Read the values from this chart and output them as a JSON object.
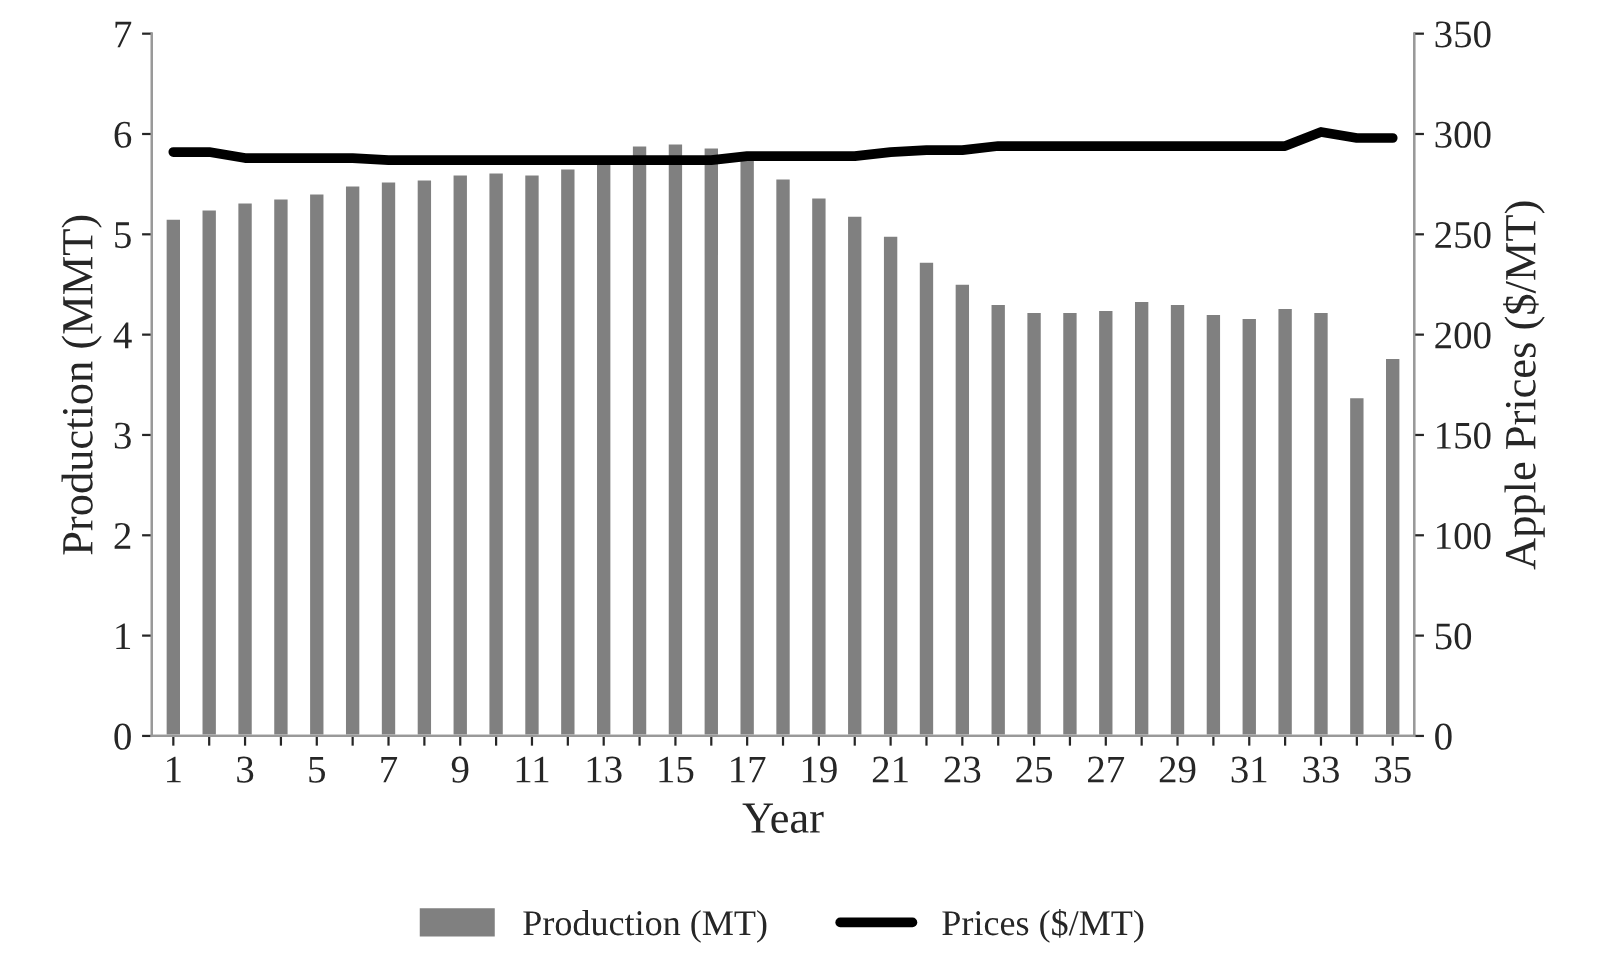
{
  "chart_data": {
    "type": "bar",
    "xlabel": "Year",
    "ylabel": "Production (MMT)",
    "y2label": "Apple Prices ($/MT)",
    "categories": [
      "1",
      null,
      "3",
      null,
      "5",
      null,
      "7",
      null,
      "9",
      null,
      "11",
      null,
      "13",
      null,
      "15",
      null,
      "17",
      null,
      "19",
      null,
      "21",
      null,
      "23",
      null,
      "25",
      null,
      "27",
      null,
      "29",
      null,
      "31",
      null,
      "33",
      null,
      "35"
    ],
    "series": [
      {
        "name": "Production (MT)",
        "color": "#808080",
        "values": [
          5.16,
          5.25,
          5.32,
          5.36,
          5.41,
          5.49,
          5.53,
          5.55,
          5.6,
          5.62,
          5.6,
          5.66,
          5.71,
          5.89,
          5.91,
          5.87,
          5.76,
          5.56,
          5.37,
          5.19,
          4.99,
          4.73,
          4.51,
          4.31,
          4.23,
          4.23,
          4.25,
          4.34,
          4.31,
          4.21,
          4.17,
          4.27,
          4.23,
          3.38,
          3.77
        ]
      },
      {
        "name": "Prices ($/MT)",
        "type": "line",
        "axis": "y2",
        "color": "#000000",
        "values": [
          291,
          291,
          288,
          288,
          288,
          288,
          287,
          287,
          287,
          287,
          287,
          287,
          287,
          287,
          287,
          287,
          289,
          289,
          289,
          289,
          291,
          292,
          292,
          294,
          294,
          294,
          294,
          294,
          294,
          294,
          294,
          294,
          301,
          298,
          298
        ]
      }
    ],
    "ylim": [
      0,
      7
    ],
    "yticks": [
      0,
      1,
      2,
      3,
      4,
      5,
      6,
      7
    ],
    "y2lim": [
      0,
      350
    ],
    "y2ticks": [
      0,
      50,
      100,
      150,
      200,
      250,
      300,
      350
    ],
    "grid": false,
    "legend": "bottom",
    "marker": "none",
    "line_style": "solid"
  }
}
